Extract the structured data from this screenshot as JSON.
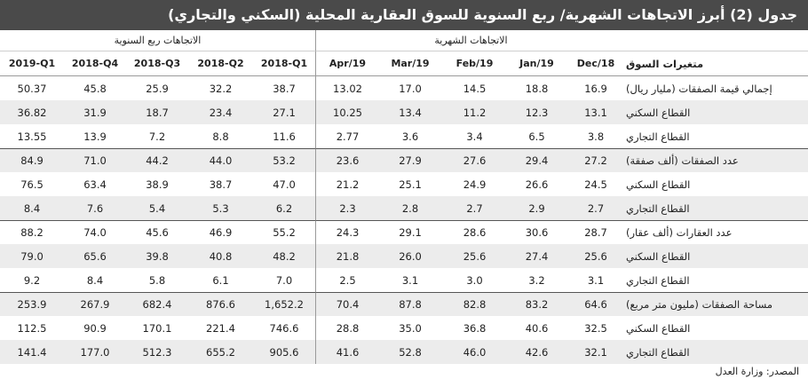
{
  "title": "جدول (2) أبرز الاتجاهات الشهرية/ ربع السنوية للسوق العقارية المحلية (السكني والتجاري)",
  "headers": {
    "quarterly_group": "الاتجاهات ربع السنوية",
    "monthly_group": "الاتجاهات الشهرية",
    "row_label": "متغيرات السوق",
    "quarterly": [
      "2019-Q1",
      "2018-Q4",
      "2018-Q3",
      "2018-Q2",
      "2018-Q1"
    ],
    "monthly": [
      "Apr/19",
      "Mar/19",
      "Feb/19",
      "Jan/19",
      "Dec/18"
    ]
  },
  "rows": [
    {
      "label": "إجمالي قيمة الصفقات (مليار ريال)",
      "q": [
        "50.37",
        "45.8",
        "25.9",
        "32.2",
        "38.7"
      ],
      "m": [
        "13.02",
        "17.0",
        "14.5",
        "18.8",
        "16.9"
      ]
    },
    {
      "label": "القطاع السكني",
      "q": [
        "36.82",
        "31.9",
        "18.7",
        "23.4",
        "27.1"
      ],
      "m": [
        "10.25",
        "13.4",
        "11.2",
        "12.3",
        "13.1"
      ]
    },
    {
      "label": "القطاع التجاري",
      "q": [
        "13.55",
        "13.9",
        "7.2",
        "8.8",
        "11.6"
      ],
      "m": [
        "2.77",
        "3.6",
        "3.4",
        "6.5",
        "3.8"
      ]
    },
    {
      "label": "عدد الصفقات (ألف صفقة)",
      "q": [
        "84.9",
        "71.0",
        "44.2",
        "44.0",
        "53.2"
      ],
      "m": [
        "23.6",
        "27.9",
        "27.6",
        "29.4",
        "27.2"
      ]
    },
    {
      "label": "القطاع السكني",
      "q": [
        "76.5",
        "63.4",
        "38.9",
        "38.7",
        "47.0"
      ],
      "m": [
        "21.2",
        "25.1",
        "24.9",
        "26.6",
        "24.5"
      ]
    },
    {
      "label": "القطاع التجاري",
      "q": [
        "8.4",
        "7.6",
        "5.4",
        "5.3",
        "6.2"
      ],
      "m": [
        "2.3",
        "2.8",
        "2.7",
        "2.9",
        "2.7"
      ]
    },
    {
      "label": "عدد العقارات (ألف عقار)",
      "q": [
        "88.2",
        "74.0",
        "45.6",
        "46.9",
        "55.2"
      ],
      "m": [
        "24.3",
        "29.1",
        "28.6",
        "30.6",
        "28.7"
      ]
    },
    {
      "label": "القطاع السكني",
      "q": [
        "79.0",
        "65.6",
        "39.8",
        "40.8",
        "48.2"
      ],
      "m": [
        "21.8",
        "26.0",
        "25.6",
        "27.4",
        "25.6"
      ]
    },
    {
      "label": "القطاع التجاري",
      "q": [
        "9.2",
        "8.4",
        "5.8",
        "6.1",
        "7.0"
      ],
      "m": [
        "2.5",
        "3.1",
        "3.0",
        "3.2",
        "3.1"
      ]
    },
    {
      "label": "مساحة الصفقات (مليون متر مربع)",
      "q": [
        "253.9",
        "267.9",
        "682.4",
        "876.6",
        "1,652.2"
      ],
      "m": [
        "70.4",
        "87.8",
        "82.8",
        "83.2",
        "64.6"
      ]
    },
    {
      "label": "القطاع السكني",
      "q": [
        "112.5",
        "90.9",
        "170.1",
        "221.4",
        "746.6"
      ],
      "m": [
        "28.8",
        "35.0",
        "36.8",
        "40.6",
        "32.5"
      ]
    },
    {
      "label": "القطاع التجاري",
      "q": [
        "141.4",
        "177.0",
        "512.3",
        "655.2",
        "905.6"
      ],
      "m": [
        "41.6",
        "52.8",
        "46.0",
        "42.6",
        "32.1"
      ]
    }
  ],
  "source": "المصدر: وزارة العدل"
}
